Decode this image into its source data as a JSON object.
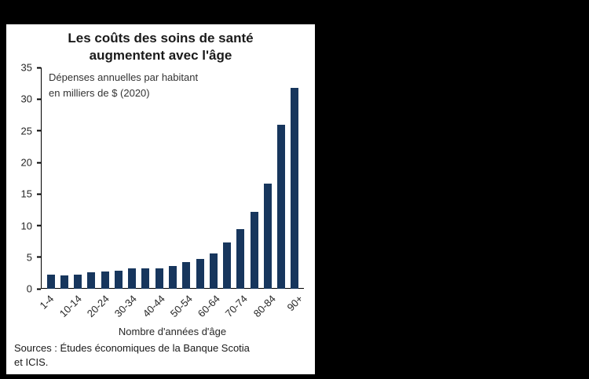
{
  "background_color": "#000000",
  "panel": {
    "background": "#ffffff"
  },
  "chart_data": {
    "type": "bar",
    "title": "Les coûts des soins de santé\naugmentent avec l'âge",
    "annotation": "Dépenses annuelles par habitant\nen milliers de $ (2020)",
    "xlabel": "Nombre d'années d'âge",
    "ylabel": "",
    "ylim": [
      0,
      35
    ],
    "yticks": [
      0,
      5,
      10,
      15,
      20,
      25,
      30,
      35
    ],
    "categories": [
      "1-4",
      "5-9",
      "10-14",
      "15-19",
      "20-24",
      "25-29",
      "30-34",
      "35-39",
      "40-44",
      "45-49",
      "50-54",
      "55-59",
      "60-64",
      "65-69",
      "70-74",
      "75-79",
      "80-84",
      "85-89",
      "90+"
    ],
    "values": [
      2.3,
      2.1,
      2.2,
      2.6,
      2.7,
      2.9,
      3.2,
      3.3,
      3.3,
      3.6,
      4.2,
      4.8,
      5.6,
      7.4,
      9.4,
      12.2,
      16.7,
      26.0,
      31.8
    ],
    "x_label_step": 2,
    "bar_color": "#17365d",
    "grid": false,
    "legend": "none",
    "source": "Sources : Études économiques de la Banque Scotia\net ICIS."
  }
}
